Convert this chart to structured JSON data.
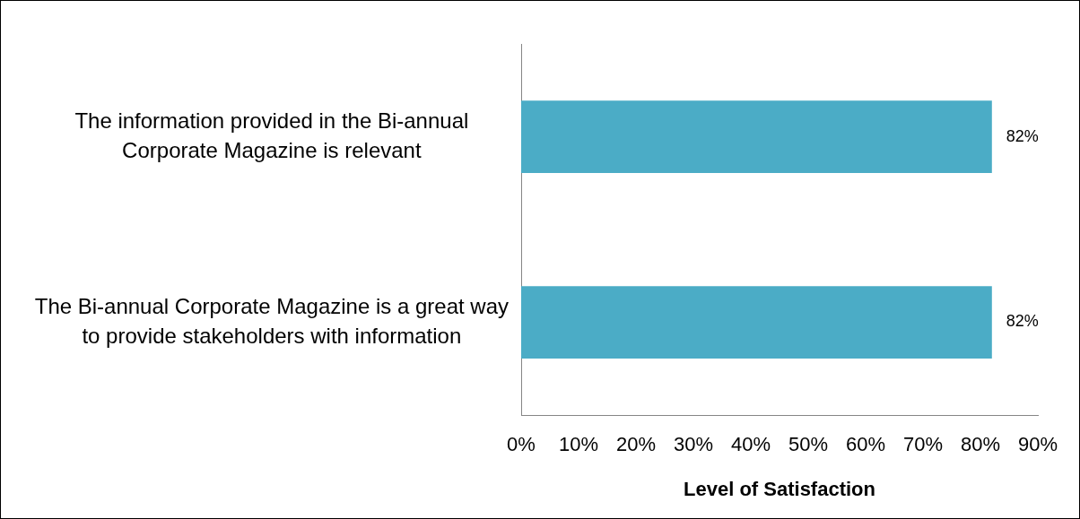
{
  "chart_data": {
    "type": "bar",
    "orientation": "horizontal",
    "categories": [
      "The information provided in the Bi-annual Corporate Magazine is relevant",
      "The Bi-annual Corporate Magazine is a great way to provide stakeholders with information"
    ],
    "values": [
      82,
      82
    ],
    "value_labels": [
      "82%",
      "82%"
    ],
    "color": "#4bacc6",
    "xlim": [
      0,
      90
    ],
    "xticks": [
      {
        "value": 0,
        "label": "0%"
      },
      {
        "value": 10,
        "label": "10%"
      },
      {
        "value": 20,
        "label": "20%"
      },
      {
        "value": 30,
        "label": "30%"
      },
      {
        "value": 40,
        "label": "40%"
      },
      {
        "value": 50,
        "label": "50%"
      },
      {
        "value": 60,
        "label": "60%"
      },
      {
        "value": 70,
        "label": "70%"
      },
      {
        "value": 80,
        "label": "80%"
      },
      {
        "value": 90,
        "label": "90%"
      }
    ],
    "xlabel": "Level of Satisfaction"
  }
}
